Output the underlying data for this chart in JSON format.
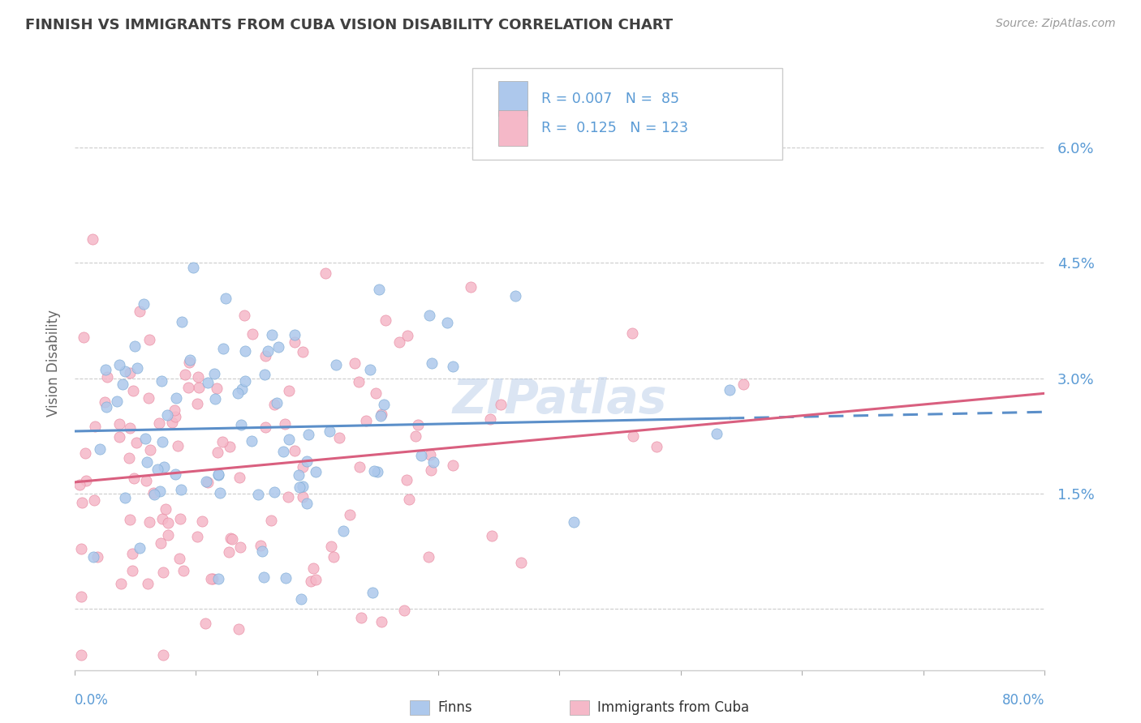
{
  "title": "FINNISH VS IMMIGRANTS FROM CUBA VISION DISABILITY CORRELATION CHART",
  "source": "Source: ZipAtlas.com",
  "ylabel": "Vision Disability",
  "yticks": [
    0.0,
    0.015,
    0.03,
    0.045,
    0.06
  ],
  "ytick_labels": [
    "",
    "1.5%",
    "3.0%",
    "4.5%",
    "6.0%"
  ],
  "xlim": [
    0.0,
    0.8
  ],
  "ylim": [
    -0.008,
    0.072
  ],
  "finns_R": 0.007,
  "finns_N": 85,
  "cuba_R": 0.125,
  "cuba_N": 123,
  "finns_color": "#adc8ec",
  "cuba_color": "#f5b8c8",
  "finns_edge_color": "#7aaad4",
  "cuba_edge_color": "#e888a0",
  "finns_line_color": "#5b8fc9",
  "cuba_line_color": "#d95f7f",
  "background_color": "#ffffff",
  "grid_color": "#cccccc",
  "title_color": "#404040",
  "axis_label_color": "#5b9bd5",
  "watermark": "ZIPatlas",
  "finns_seed": 42,
  "cuba_seed": 7
}
